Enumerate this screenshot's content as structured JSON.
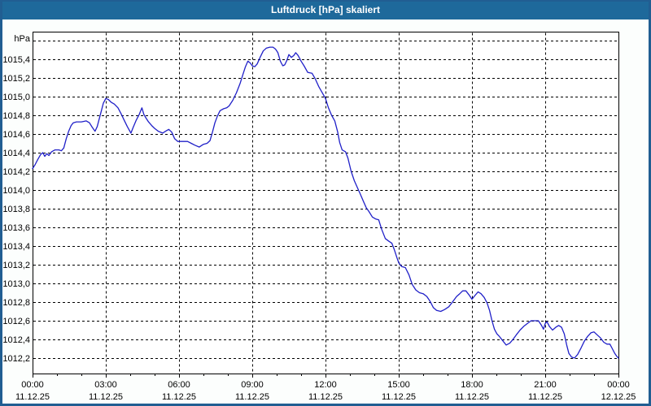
{
  "window": {
    "title": "Luftdruck [hPa] skaliert"
  },
  "colors": {
    "titlebar": "#1e699b",
    "page_border": "#215e92",
    "page_bg": "#fcfefd",
    "plot_bg": "#ffffff",
    "grid": "#000000",
    "axis": "#000000",
    "line": "#2020c8",
    "text": "#000000",
    "title_text": "#ffffff"
  },
  "chart_data": {
    "type": "line",
    "title": "Luftdruck [hPa] skaliert",
    "ylabel": "hPa",
    "xlabel": "",
    "grid": "dashed",
    "legend": "none",
    "ylim": [
      1012.04,
      1015.6
    ],
    "xlim_hours": [
      0,
      24
    ],
    "y_top_gridline": 1015.6,
    "y_tick_step": 0.2,
    "minor_x_tick_hours": 1,
    "y_ticks": [
      {
        "value": 1015.4,
        "label": "1015,4"
      },
      {
        "value": 1015.2,
        "label": "1015,2"
      },
      {
        "value": 1015.0,
        "label": "1015,0"
      },
      {
        "value": 1014.8,
        "label": "1014,8"
      },
      {
        "value": 1014.6,
        "label": "1014,6"
      },
      {
        "value": 1014.4,
        "label": "1014,4"
      },
      {
        "value": 1014.2,
        "label": "1014,2"
      },
      {
        "value": 1014.0,
        "label": "1014,0"
      },
      {
        "value": 1013.8,
        "label": "1013,8"
      },
      {
        "value": 1013.6,
        "label": "1013,6"
      },
      {
        "value": 1013.4,
        "label": "1013,4"
      },
      {
        "value": 1013.2,
        "label": "1013,2"
      },
      {
        "value": 1013.0,
        "label": "1013,0"
      },
      {
        "value": 1012.8,
        "label": "1012,8"
      },
      {
        "value": 1012.6,
        "label": "1012,6"
      },
      {
        "value": 1012.4,
        "label": "1012,4"
      },
      {
        "value": 1012.2,
        "label": "1012,2"
      }
    ],
    "x_ticks": [
      {
        "hour": 0,
        "time": "00:00",
        "date": "11.12.25"
      },
      {
        "hour": 3,
        "time": "03:00",
        "date": "11.12.25"
      },
      {
        "hour": 6,
        "time": "06:00",
        "date": "11.12.25"
      },
      {
        "hour": 9,
        "time": "09:00",
        "date": "11.12.25"
      },
      {
        "hour": 12,
        "time": "12:00",
        "date": "11.12.25"
      },
      {
        "hour": 15,
        "time": "15:00",
        "date": "11.12.25"
      },
      {
        "hour": 18,
        "time": "18:00",
        "date": "11.12.25"
      },
      {
        "hour": 21,
        "time": "21:00",
        "date": "11.12.25"
      },
      {
        "hour": 24,
        "time": "00:00",
        "date": "12.12.25"
      }
    ],
    "series": [
      {
        "name": "Luftdruck [hPa]",
        "color": "#2020c8",
        "points": [
          [
            0,
            1014.23
          ],
          [
            0.1,
            1014.27
          ],
          [
            0.2,
            1014.32
          ],
          [
            0.33,
            1014.38
          ],
          [
            0.42,
            1014.4
          ],
          [
            0.5,
            1014.36
          ],
          [
            0.58,
            1014.39
          ],
          [
            0.67,
            1014.37
          ],
          [
            0.78,
            1014.41
          ],
          [
            0.92,
            1014.43
          ],
          [
            1.08,
            1014.43
          ],
          [
            1.18,
            1014.42
          ],
          [
            1.28,
            1014.45
          ],
          [
            1.38,
            1014.55
          ],
          [
            1.48,
            1014.63
          ],
          [
            1.58,
            1014.69
          ],
          [
            1.67,
            1014.72
          ],
          [
            1.8,
            1014.73
          ],
          [
            2.0,
            1014.73
          ],
          [
            2.2,
            1014.74
          ],
          [
            2.33,
            1014.72
          ],
          [
            2.45,
            1014.67
          ],
          [
            2.56,
            1014.63
          ],
          [
            2.65,
            1014.68
          ],
          [
            2.73,
            1014.76
          ],
          [
            2.82,
            1014.85
          ],
          [
            2.9,
            1014.93
          ],
          [
            3.0,
            1014.98
          ],
          [
            3.1,
            1014.97
          ],
          [
            3.22,
            1014.94
          ],
          [
            3.35,
            1014.92
          ],
          [
            3.5,
            1014.88
          ],
          [
            3.62,
            1014.82
          ],
          [
            3.75,
            1014.75
          ],
          [
            3.88,
            1014.68
          ],
          [
            4.03,
            1014.61
          ],
          [
            4.12,
            1014.67
          ],
          [
            4.25,
            1014.75
          ],
          [
            4.37,
            1014.81
          ],
          [
            4.48,
            1014.88
          ],
          [
            4.56,
            1014.81
          ],
          [
            4.65,
            1014.77
          ],
          [
            4.75,
            1014.73
          ],
          [
            4.88,
            1014.69
          ],
          [
            5.0,
            1014.66
          ],
          [
            5.15,
            1014.63
          ],
          [
            5.33,
            1014.61
          ],
          [
            5.45,
            1014.63
          ],
          [
            5.58,
            1014.65
          ],
          [
            5.7,
            1014.62
          ],
          [
            5.82,
            1014.55
          ],
          [
            5.95,
            1014.52
          ],
          [
            6.15,
            1014.52
          ],
          [
            6.35,
            1014.52
          ],
          [
            6.5,
            1014.5
          ],
          [
            6.65,
            1014.48
          ],
          [
            6.83,
            1014.46
          ],
          [
            7.0,
            1014.49
          ],
          [
            7.15,
            1014.5
          ],
          [
            7.27,
            1014.53
          ],
          [
            7.37,
            1014.62
          ],
          [
            7.47,
            1014.72
          ],
          [
            7.57,
            1014.79
          ],
          [
            7.68,
            1014.85
          ],
          [
            7.82,
            1014.87
          ],
          [
            7.95,
            1014.88
          ],
          [
            8.05,
            1014.9
          ],
          [
            8.2,
            1014.96
          ],
          [
            8.35,
            1015.04
          ],
          [
            8.5,
            1015.14
          ],
          [
            8.62,
            1015.24
          ],
          [
            8.72,
            1015.32
          ],
          [
            8.82,
            1015.38
          ],
          [
            8.92,
            1015.36
          ],
          [
            9.0,
            1015.33
          ],
          [
            9.1,
            1015.32
          ],
          [
            9.2,
            1015.35
          ],
          [
            9.32,
            1015.42
          ],
          [
            9.45,
            1015.49
          ],
          [
            9.58,
            1015.52
          ],
          [
            9.72,
            1015.53
          ],
          [
            9.85,
            1015.53
          ],
          [
            9.95,
            1015.51
          ],
          [
            10.05,
            1015.47
          ],
          [
            10.15,
            1015.38
          ],
          [
            10.25,
            1015.33
          ],
          [
            10.33,
            1015.34
          ],
          [
            10.42,
            1015.39
          ],
          [
            10.5,
            1015.45
          ],
          [
            10.6,
            1015.42
          ],
          [
            10.7,
            1015.44
          ],
          [
            10.78,
            1015.47
          ],
          [
            10.88,
            1015.44
          ],
          [
            11.0,
            1015.38
          ],
          [
            11.12,
            1015.33
          ],
          [
            11.27,
            1015.26
          ],
          [
            11.45,
            1015.25
          ],
          [
            11.58,
            1015.19
          ],
          [
            11.72,
            1015.11
          ],
          [
            11.85,
            1015.05
          ],
          [
            12.0,
            1014.98
          ],
          [
            12.12,
            1014.88
          ],
          [
            12.25,
            1014.8
          ],
          [
            12.38,
            1014.74
          ],
          [
            12.5,
            1014.62
          ],
          [
            12.58,
            1014.51
          ],
          [
            12.68,
            1014.43
          ],
          [
            12.82,
            1014.41
          ],
          [
            12.92,
            1014.34
          ],
          [
            13.05,
            1014.2
          ],
          [
            13.18,
            1014.1
          ],
          [
            13.3,
            1014.03
          ],
          [
            13.42,
            1013.96
          ],
          [
            13.55,
            1013.88
          ],
          [
            13.67,
            1013.81
          ],
          [
            13.78,
            1013.77
          ],
          [
            13.92,
            1013.71
          ],
          [
            14.05,
            1013.69
          ],
          [
            14.18,
            1013.68
          ],
          [
            14.3,
            1013.58
          ],
          [
            14.45,
            1013.48
          ],
          [
            14.6,
            1013.45
          ],
          [
            14.72,
            1013.43
          ],
          [
            14.82,
            1013.36
          ],
          [
            14.92,
            1013.28
          ],
          [
            15.0,
            1013.22
          ],
          [
            15.12,
            1013.18
          ],
          [
            15.27,
            1013.17
          ],
          [
            15.42,
            1013.09
          ],
          [
            15.55,
            1012.99
          ],
          [
            15.7,
            1012.93
          ],
          [
            15.85,
            1012.9
          ],
          [
            16.0,
            1012.89
          ],
          [
            16.15,
            1012.86
          ],
          [
            16.28,
            1012.81
          ],
          [
            16.42,
            1012.74
          ],
          [
            16.55,
            1012.71
          ],
          [
            16.72,
            1012.7
          ],
          [
            16.88,
            1012.72
          ],
          [
            17.05,
            1012.75
          ],
          [
            17.2,
            1012.8
          ],
          [
            17.37,
            1012.86
          ],
          [
            17.5,
            1012.89
          ],
          [
            17.62,
            1012.92
          ],
          [
            17.75,
            1012.92
          ],
          [
            17.87,
            1012.88
          ],
          [
            18.0,
            1012.83
          ],
          [
            18.12,
            1012.87
          ],
          [
            18.25,
            1012.91
          ],
          [
            18.37,
            1012.89
          ],
          [
            18.5,
            1012.85
          ],
          [
            18.62,
            1012.79
          ],
          [
            18.72,
            1012.71
          ],
          [
            18.82,
            1012.6
          ],
          [
            18.92,
            1012.51
          ],
          [
            19.02,
            1012.46
          ],
          [
            19.13,
            1012.43
          ],
          [
            19.25,
            1012.39
          ],
          [
            19.4,
            1012.34
          ],
          [
            19.55,
            1012.36
          ],
          [
            19.68,
            1012.4
          ],
          [
            19.82,
            1012.45
          ],
          [
            19.97,
            1012.5
          ],
          [
            20.12,
            1012.54
          ],
          [
            20.27,
            1012.57
          ],
          [
            20.42,
            1012.6
          ],
          [
            20.58,
            1012.6
          ],
          [
            20.72,
            1012.6
          ],
          [
            20.85,
            1012.55
          ],
          [
            20.93,
            1012.51
          ],
          [
            21.0,
            1012.57
          ],
          [
            21.07,
            1012.59
          ],
          [
            21.17,
            1012.54
          ],
          [
            21.3,
            1012.5
          ],
          [
            21.43,
            1012.53
          ],
          [
            21.55,
            1012.55
          ],
          [
            21.67,
            1012.53
          ],
          [
            21.78,
            1012.46
          ],
          [
            21.88,
            1012.34
          ],
          [
            21.97,
            1012.25
          ],
          [
            22.08,
            1012.21
          ],
          [
            22.2,
            1012.2
          ],
          [
            22.33,
            1012.24
          ],
          [
            22.47,
            1012.31
          ],
          [
            22.6,
            1012.38
          ],
          [
            22.73,
            1012.43
          ],
          [
            22.87,
            1012.47
          ],
          [
            23.0,
            1012.48
          ],
          [
            23.12,
            1012.45
          ],
          [
            23.25,
            1012.42
          ],
          [
            23.4,
            1012.37
          ],
          [
            23.53,
            1012.35
          ],
          [
            23.65,
            1012.35
          ],
          [
            23.75,
            1012.3
          ],
          [
            23.85,
            1012.25
          ],
          [
            23.93,
            1012.22
          ],
          [
            24,
            1012.2
          ]
        ]
      }
    ]
  }
}
